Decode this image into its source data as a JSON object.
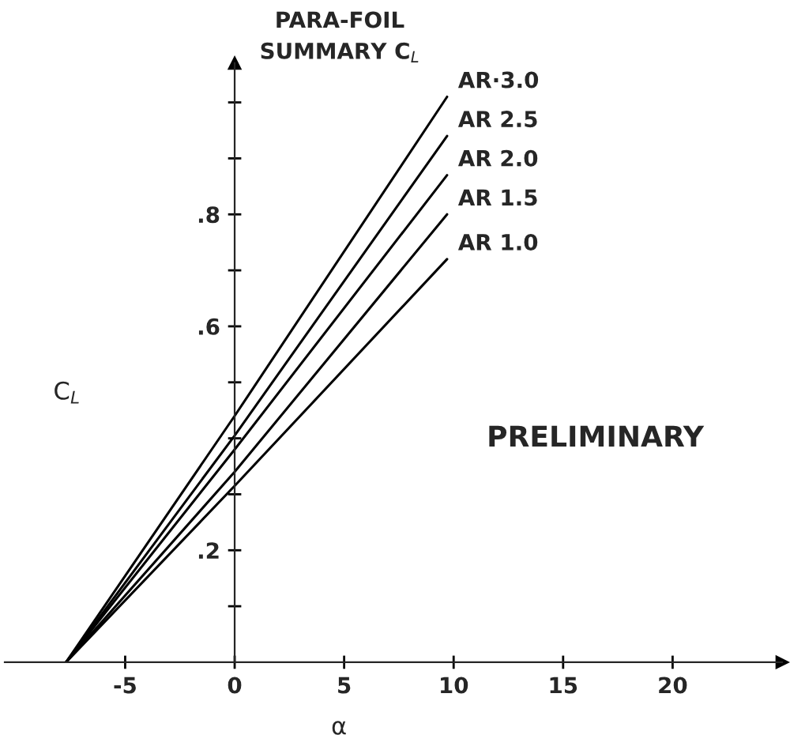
{
  "chart_data": {
    "type": "line",
    "title": "PARA-FOIL\nSUMMARY C$_{L}$",
    "xlabel": "α",
    "ylabel": "C$_{L}$",
    "xlim": [
      -10.5,
      25
    ],
    "ylim": [
      0,
      1.07
    ],
    "xticks": [
      -5,
      {
        "value": 0,
        "label": "0"
      },
      5,
      10,
      15,
      20
    ],
    "yticks": [
      {
        "value": 0.1,
        "label": null
      },
      {
        "value": 0.2,
        "label": ".2"
      },
      {
        "value": 0.3,
        "label": null
      },
      {
        "value": 0.4,
        "label": null
      },
      {
        "value": 0.5,
        "label": null
      },
      {
        "value": 0.6,
        "label": ".6"
      },
      {
        "value": 0.7,
        "label": null
      },
      {
        "value": 0.8,
        "label": ".8"
      },
      {
        "value": 0.9,
        "label": null
      },
      {
        "value": 1.0,
        "label": null
      }
    ],
    "grid": false,
    "legend": false,
    "marker": "none",
    "line_style": "solid",
    "annotations": [
      "PRELIMINARY"
    ],
    "series": [
      {
        "name": "AR·3.0",
        "color": "#000000",
        "x": [
          -7.7,
          0,
          9.7
        ],
        "values": [
          0,
          0.44,
          1.01
        ]
      },
      {
        "name": "AR 2.5",
        "color": "#000000",
        "x": [
          -7.7,
          0,
          9.7
        ],
        "values": [
          0,
          0.405,
          0.94
        ]
      },
      {
        "name": "AR 2.0",
        "color": "#000000",
        "x": [
          -7.7,
          0,
          9.7
        ],
        "values": [
          0,
          0.38,
          0.87
        ]
      },
      {
        "name": "AR 1.5",
        "color": "#000000",
        "x": [
          -7.7,
          0,
          9.7
        ],
        "values": [
          0,
          0.34,
          0.8
        ]
      },
      {
        "name": "AR 1.0",
        "color": "#000000",
        "x": [
          -7.7,
          0,
          9.7
        ],
        "values": [
          0,
          0.315,
          0.72
        ]
      }
    ]
  }
}
